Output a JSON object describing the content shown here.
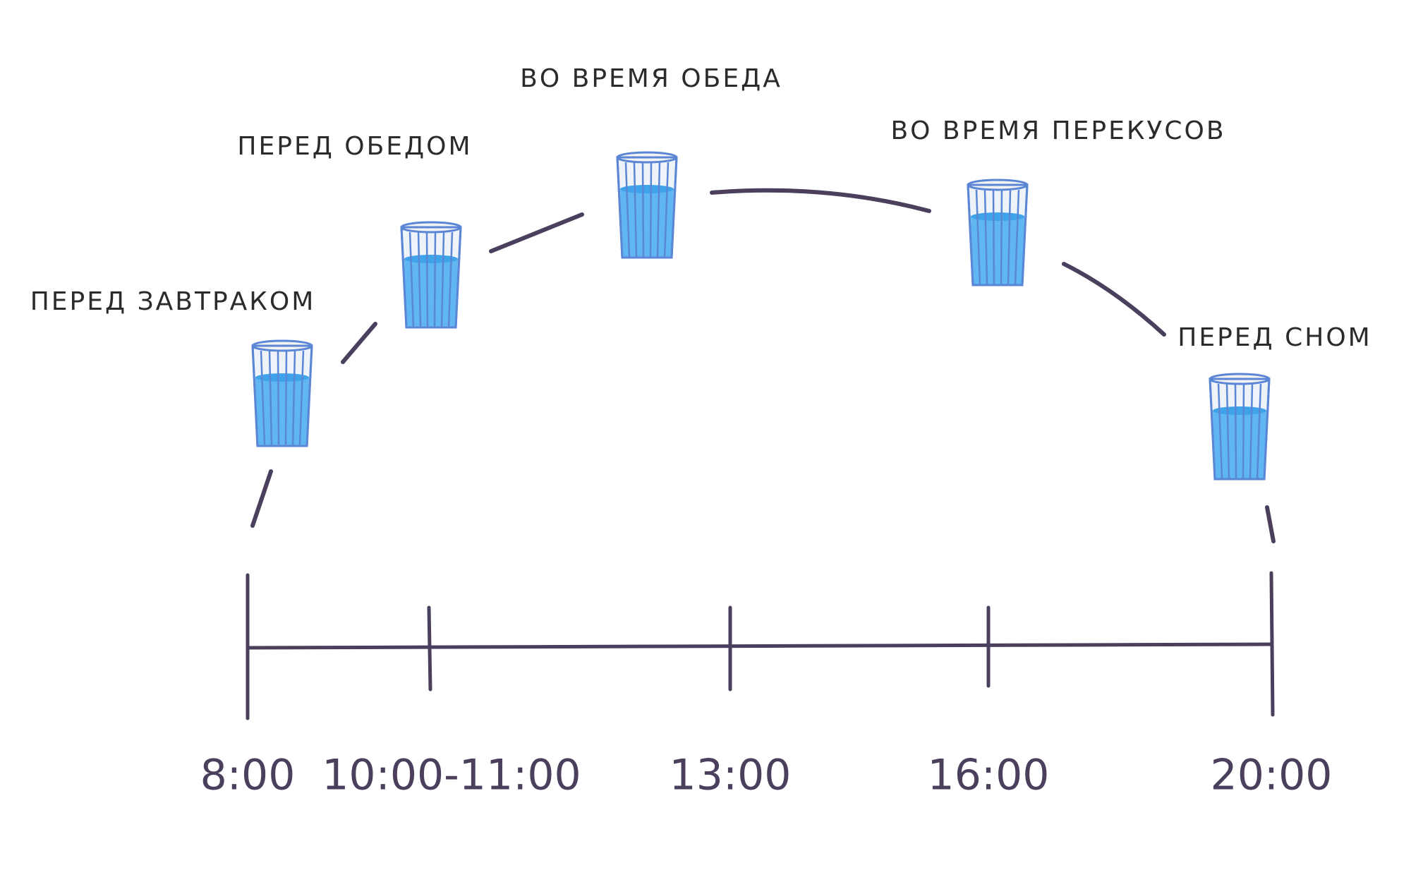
{
  "events": [
    {
      "label": "ПЕРЕД ЗАВТРАКОМ",
      "time": "8:00"
    },
    {
      "label": "ПЕРЕД ОБЕДОМ",
      "time": "10:00-11:00"
    },
    {
      "label": "ВО ВРЕМЯ ОБЕДА",
      "time": "13:00"
    },
    {
      "label": "ВО ВРЕМЯ ПЕРЕКУСОВ",
      "time": "16:00"
    },
    {
      "label": "ПЕРЕД СНОМ",
      "time": "20:00"
    }
  ]
}
